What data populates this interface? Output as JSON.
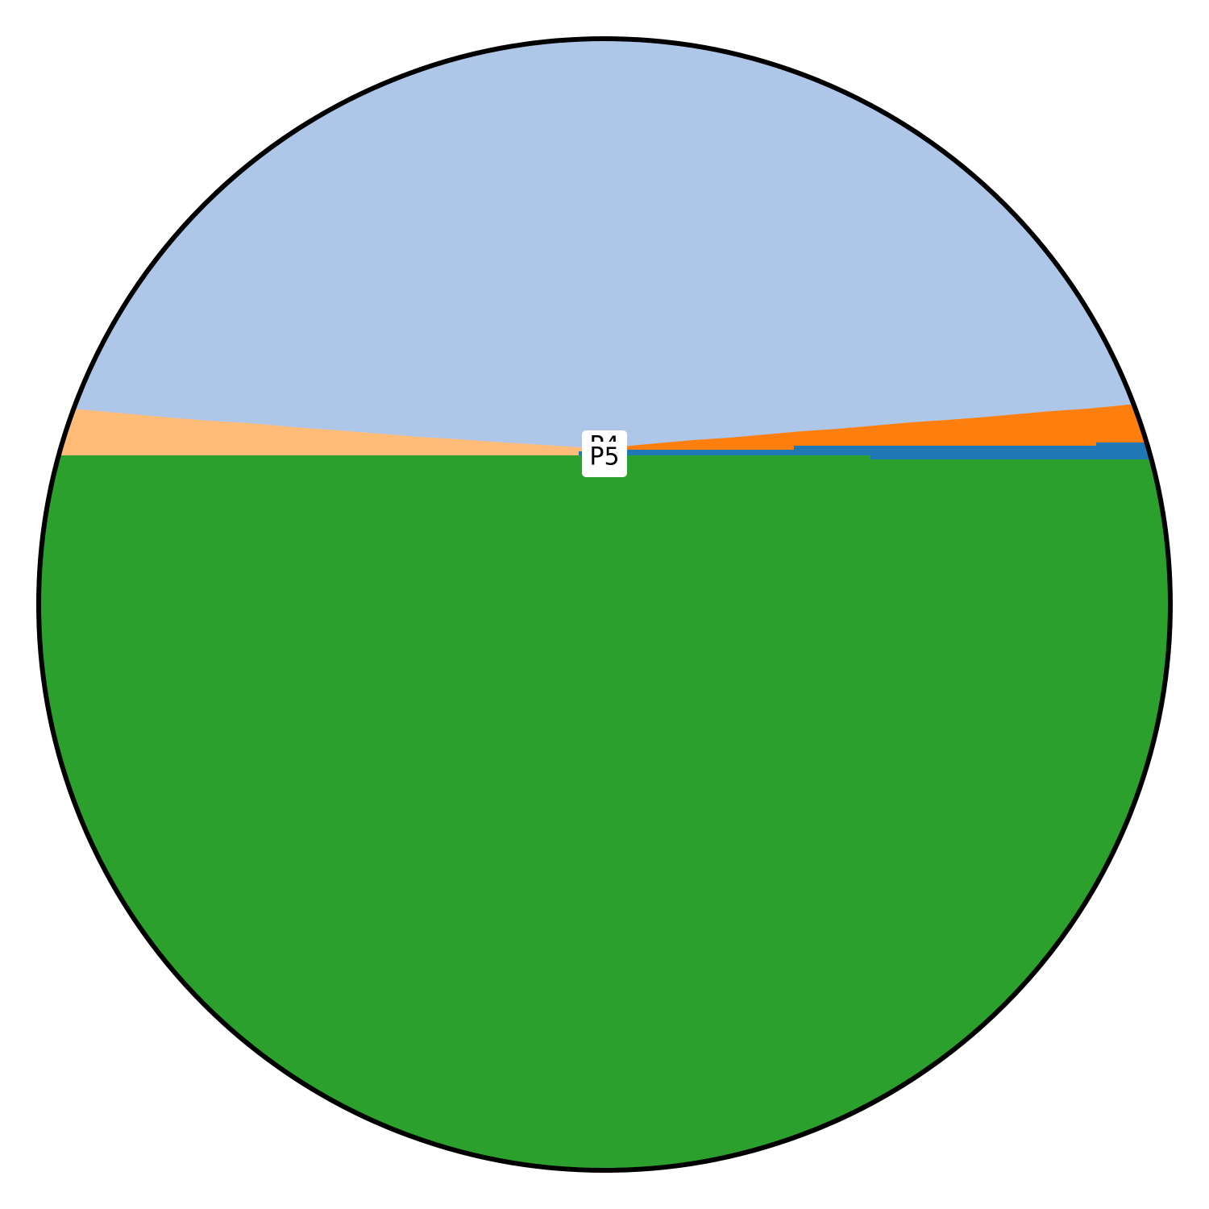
{
  "labels": [
    "P4",
    "P5"
  ]
}
